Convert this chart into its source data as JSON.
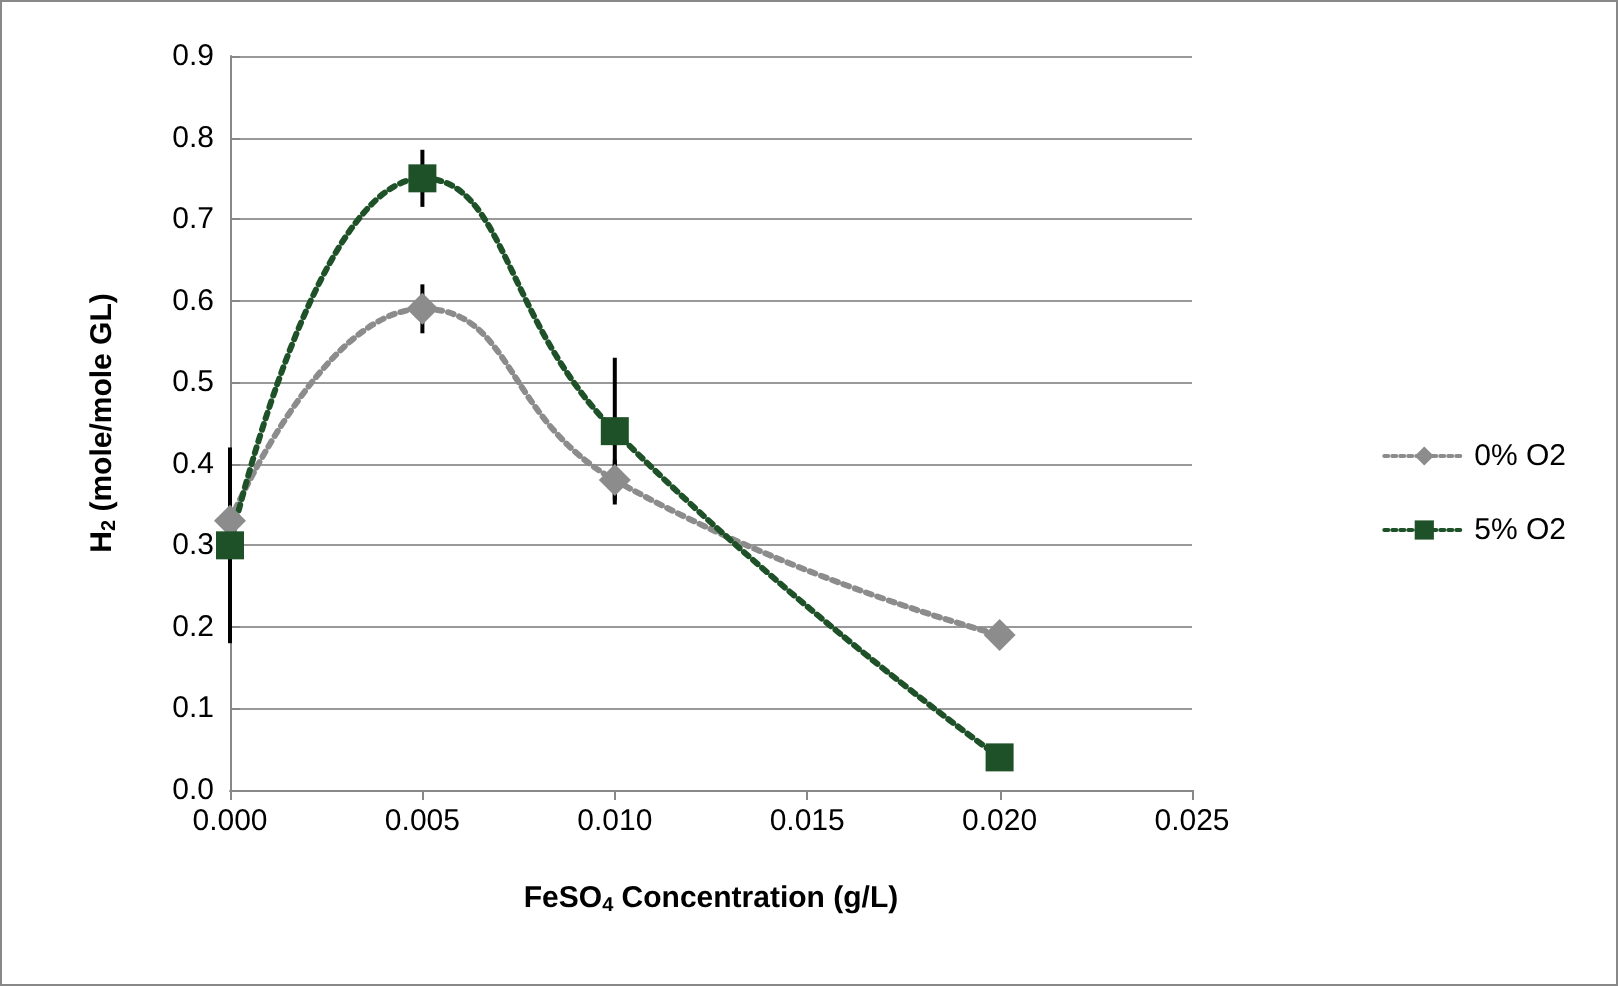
{
  "chart_data": {
    "type": "line",
    "xlabel": "FeSO$_{4}$ Concentration (g/L)",
    "ylabel": "H$_{2}$ (mole/mole GL)",
    "xlim": [
      0,
      0.025
    ],
    "xticks": [
      {
        "value": 0,
        "label": "0.000"
      },
      {
        "value": 0.005,
        "label": "0.005"
      },
      {
        "value": 0.01,
        "label": "0.010"
      },
      {
        "value": 0.015,
        "label": "0.015"
      },
      {
        "value": 0.02,
        "label": "0.020"
      },
      {
        "value": 0.025,
        "label": "0.025"
      }
    ],
    "ylim": [
      0,
      0.9
    ],
    "yticks": [
      {
        "value": 0,
        "label": "0.0"
      },
      {
        "value": 0.1,
        "label": "0.1"
      },
      {
        "value": 0.2,
        "label": "0.2"
      },
      {
        "value": 0.3,
        "label": "0.3"
      },
      {
        "value": 0.4,
        "label": "0.4"
      },
      {
        "value": 0.5,
        "label": "0.5"
      },
      {
        "value": 0.6,
        "label": "0.6"
      },
      {
        "value": 0.7,
        "label": "0.7"
      },
      {
        "value": 0.8,
        "label": "0.8"
      },
      {
        "value": 0.9,
        "label": "0.9"
      }
    ],
    "x": [
      0,
      0.005,
      0.01,
      0.02
    ],
    "series": [
      {
        "name": "0% O2",
        "color": "#8c8c8c",
        "marker": "diamond",
        "values": [
          0.33,
          0.59,
          0.38,
          0.19
        ],
        "errors": [
          null,
          0.03,
          0.025,
          null
        ]
      },
      {
        "name": "5% O2",
        "color": "#1e5128",
        "marker": "square",
        "values": [
          0.3,
          0.75,
          0.44,
          0.04
        ],
        "errors": [
          0.12,
          0.035,
          0.09,
          null
        ]
      }
    ],
    "grid": "y",
    "legend": "right",
    "line_style": "dotted"
  }
}
